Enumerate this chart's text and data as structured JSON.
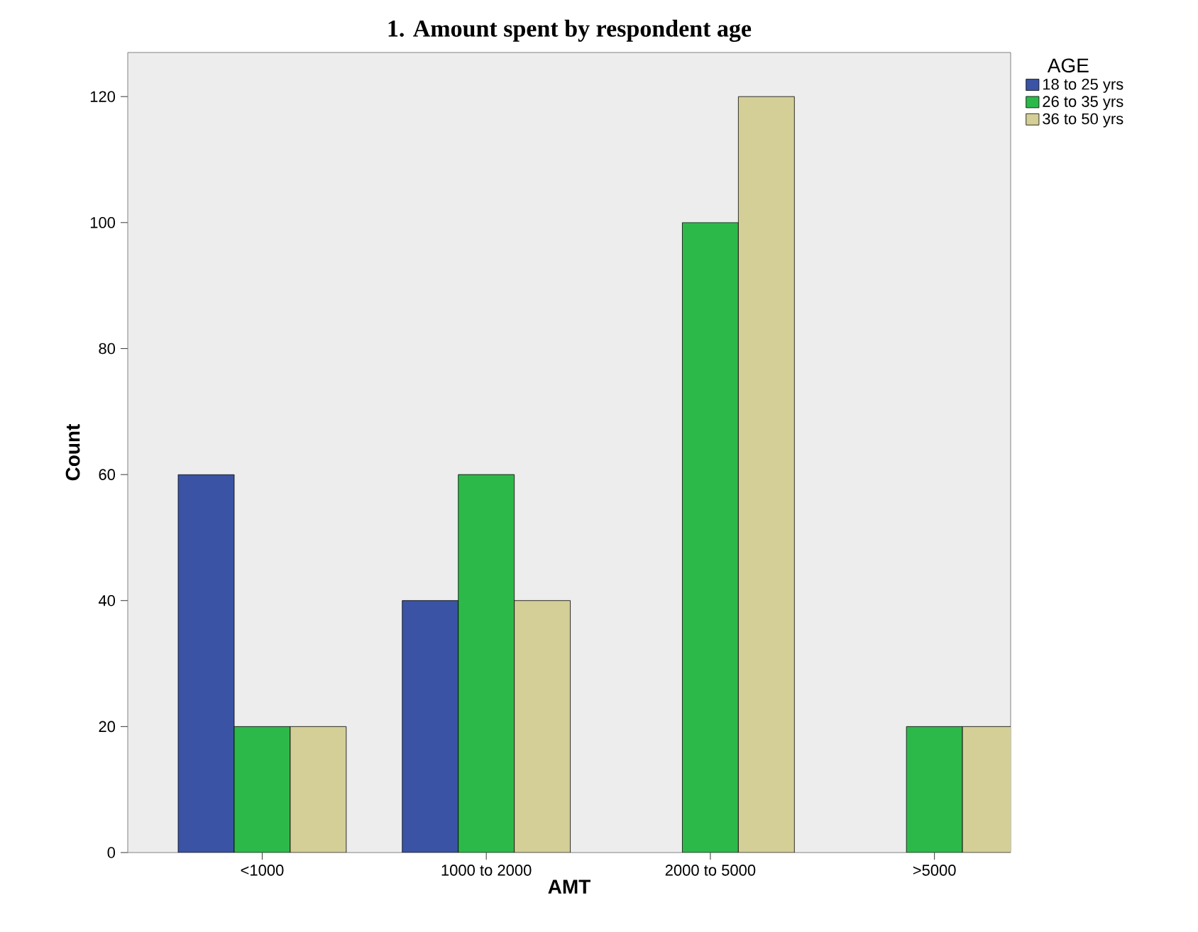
{
  "chart_data": {
    "type": "bar",
    "title": "1.   Amount spent by respondent age",
    "xlabel": "AMT",
    "ylabel": "Count",
    "legend_title": "AGE",
    "categories": [
      "<1000",
      "1000 to 2000",
      "2000 to 5000",
      ">5000"
    ],
    "series": [
      {
        "name": "18 to 25 yrs",
        "color": "#3a53a4",
        "values": [
          60,
          40,
          null,
          null
        ]
      },
      {
        "name": "26 to 35 yrs",
        "color": "#2db94a",
        "values": [
          20,
          60,
          100,
          20
        ]
      },
      {
        "name": "36 to 50 yrs",
        "color": "#d4cf97",
        "values": [
          20,
          40,
          120,
          20
        ]
      }
    ],
    "ylim": [
      0,
      127
    ],
    "yticks": [
      0,
      20,
      40,
      60,
      80,
      100,
      120
    ],
    "legend": "top right",
    "grid": false
  }
}
